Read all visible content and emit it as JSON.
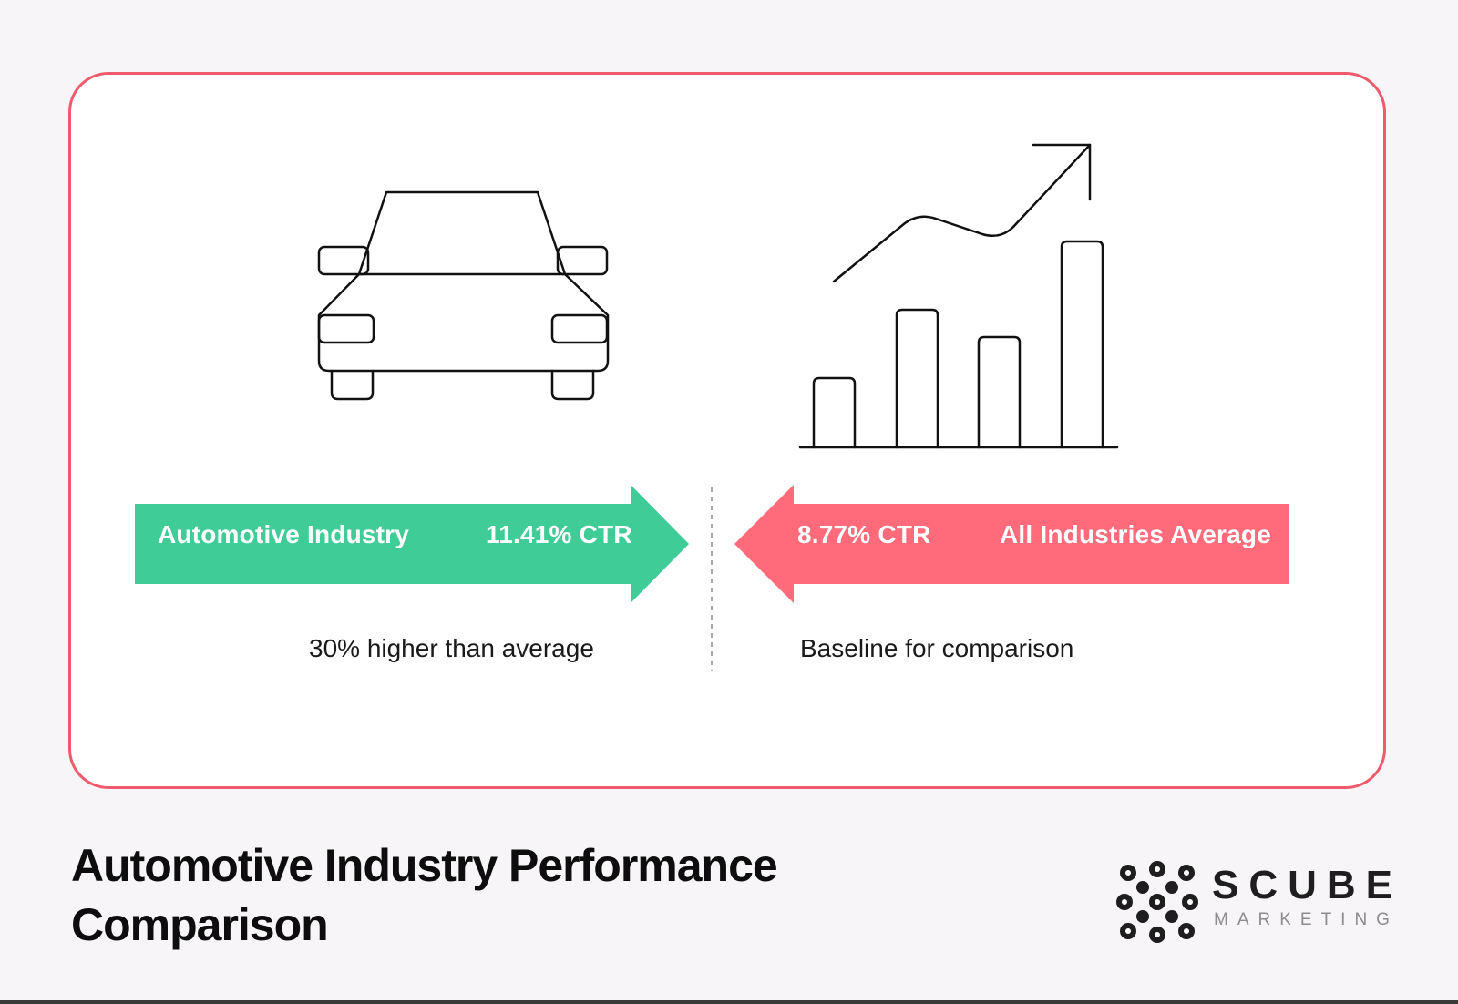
{
  "left": {
    "label": "Automotive Industry",
    "value": "11.41% CTR",
    "caption": "30% higher than average",
    "color": "#40cc96"
  },
  "right": {
    "label": "All Industries Average",
    "value": "8.77% CTR",
    "caption": "Baseline for comparison",
    "color": "#ff6b7a"
  },
  "icons": {
    "left": "car-front-icon",
    "right": "bar-chart-growth-icon"
  },
  "title": "Automotive Industry Performance Comparison",
  "brand": {
    "name": "SCUBE",
    "tagline": "MARKETING"
  },
  "border_color": "#ef5a6d"
}
